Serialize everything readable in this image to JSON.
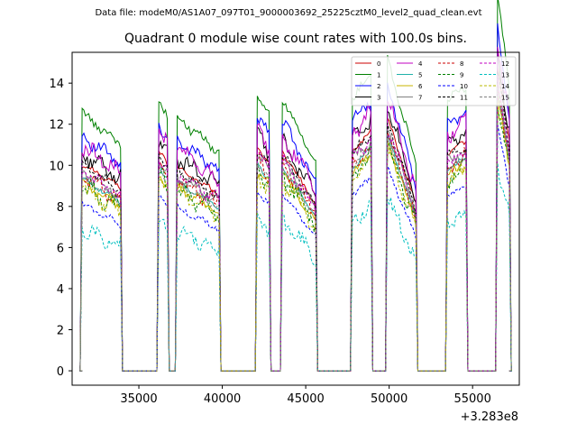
{
  "suptitle": "Data file: modeM0/AS1A07_097T01_9000003692_25225cztM0_level2_quad_clean.evt",
  "chart_data": {
    "type": "line",
    "title": "Quadrant 0 module wise count rates with 100.0s bins.",
    "xlabel": "",
    "ylabel": "",
    "x_offset_label": "+3.283e8",
    "xlim": [
      31000,
      57800
    ],
    "ylim": [
      -0.7,
      15.5
    ],
    "xticks": [
      35000,
      40000,
      45000,
      50000,
      55000
    ],
    "yticks": [
      0,
      2,
      4,
      6,
      8,
      10,
      12,
      14
    ],
    "xtick_labels": [
      "35000",
      "40000",
      "45000",
      "50000",
      "55000"
    ],
    "ytick_labels": [
      "0",
      "2",
      "4",
      "6",
      "8",
      "10",
      "12",
      "14"
    ],
    "legend_location": "upper-right",
    "legend_columns": 4,
    "on_segments": [
      [
        31600,
        33900
      ],
      [
        36200,
        36700
      ],
      [
        37300,
        39800
      ],
      [
        42100,
        42800
      ],
      [
        43600,
        45600
      ],
      [
        47800,
        48900
      ],
      [
        49900,
        51600
      ],
      [
        53500,
        54600
      ],
      [
        56500,
        57200
      ]
    ],
    "segment_envelope": [
      {
        "start": 10.0,
        "end": 8.8
      },
      {
        "start": 10.5,
        "end": 10.0
      },
      {
        "start": 9.8,
        "end": 8.5
      },
      {
        "start": 10.8,
        "end": 10.0
      },
      {
        "start": 10.6,
        "end": 8.0
      },
      {
        "start": 10.6,
        "end": 11.5
      },
      {
        "start": 12.2,
        "end": 8.0
      },
      {
        "start": 10.5,
        "end": 11.0
      },
      {
        "start": 14.6,
        "end": 11.0
      }
    ],
    "series": [
      {
        "name": "0",
        "color": "#cc0000",
        "style": "solid",
        "level": 8.2
      },
      {
        "name": "1",
        "color": "#008000",
        "style": "solid",
        "level": 10.2
      },
      {
        "name": "2",
        "color": "#0000ff",
        "style": "solid",
        "level": 9.3
      },
      {
        "name": "3",
        "color": "#000000",
        "style": "solid",
        "level": 8.6
      },
      {
        "name": "4",
        "color": "#c000c0",
        "style": "solid",
        "level": 8.9
      },
      {
        "name": "5",
        "color": "#20b2aa",
        "style": "solid",
        "level": 7.6
      },
      {
        "name": "6",
        "color": "#c8b400",
        "style": "solid",
        "level": 7.4
      },
      {
        "name": "7",
        "color": "#808080",
        "style": "solid",
        "level": 7.9
      },
      {
        "name": "8",
        "color": "#cc0000",
        "style": "dashed",
        "level": 7.7
      },
      {
        "name": "9",
        "color": "#008000",
        "style": "dashed",
        "level": 7.3
      },
      {
        "name": "10",
        "color": "#0000ff",
        "style": "dashed",
        "level": 6.6
      },
      {
        "name": "11",
        "color": "#000000",
        "style": "dashed",
        "level": 8.1
      },
      {
        "name": "12",
        "color": "#c000c0",
        "style": "dashed",
        "level": 7.9
      },
      {
        "name": "13",
        "color": "#00bfbf",
        "style": "dashed",
        "level": 5.6
      },
      {
        "name": "14",
        "color": "#b8b800",
        "style": "dashed",
        "level": 7.2
      },
      {
        "name": "15",
        "color": "#808080",
        "style": "dashed",
        "level": 7.6
      }
    ]
  }
}
